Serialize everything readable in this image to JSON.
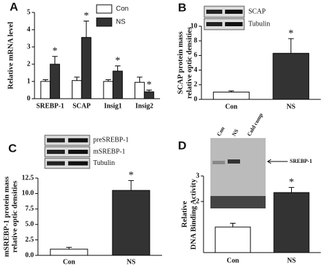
{
  "chart_data": [
    {
      "type": "bar",
      "letter": "A",
      "y_label": [
        "Relative mRNA level"
      ],
      "categories": [
        "SREBP-1",
        "SCAP",
        "Insig1",
        "Insig2"
      ],
      "series": [
        {
          "name": "Con",
          "color": "#ffffff",
          "values": [
            1.0,
            1.05,
            1.0,
            0.95
          ],
          "errors": [
            0.1,
            0.2,
            0.1,
            0.3
          ]
        },
        {
          "name": "NS",
          "color": "#333333",
          "values": [
            2.0,
            3.55,
            1.6,
            0.4
          ],
          "errors": [
            0.45,
            0.95,
            0.3,
            0.1
          ],
          "annotations": [
            "*",
            "*",
            "*",
            "*"
          ]
        }
      ],
      "ylim": [
        0,
        5
      ],
      "yticks": [
        0,
        1,
        2,
        3,
        4,
        5
      ],
      "legend": "top-right"
    },
    {
      "type": "bar",
      "letter": "B",
      "y_label": [
        "SCAP protein mass",
        "relative optic densities"
      ],
      "blot_labels": [
        "SCAP",
        "Tubulin"
      ],
      "categories": [
        "Con",
        "NS"
      ],
      "values": [
        1.0,
        6.3
      ],
      "errors": [
        0.15,
        2.0
      ],
      "colors": [
        "#ffffff",
        "#333333"
      ],
      "annotations": [
        null,
        "*"
      ],
      "ylim": [
        0,
        10
      ],
      "yticks": [
        0,
        2,
        4,
        6,
        8,
        10
      ]
    },
    {
      "type": "bar",
      "letter": "C",
      "y_label": [
        "mSREBP-1 protein mass",
        "relative optic densities"
      ],
      "blot_labels": [
        "preSREBP-1",
        "mSREBP-1",
        "Tubulin"
      ],
      "categories": [
        "Con",
        "NS"
      ],
      "values": [
        1.0,
        10.5
      ],
      "errors": [
        0.3,
        1.6
      ],
      "colors": [
        "#ffffff",
        "#333333"
      ],
      "annotations": [
        null,
        "*"
      ],
      "ylim": [
        0,
        12.5
      ],
      "yticks": [
        {
          "value": 0,
          "label": "0.0"
        },
        2.5,
        {
          "value": 5,
          "label": "5.0"
        },
        7.5,
        {
          "value": 10,
          "label": "10.0"
        },
        12.5
      ]
    },
    {
      "type": "bar",
      "letter": "D",
      "y_label": [
        "Relative",
        "DNA Binding Activity"
      ],
      "lane_labels": [
        "Con",
        "NS",
        "Cold comp"
      ],
      "band_label": "SREBP-1",
      "categories": [
        "Con",
        "NS"
      ],
      "values": [
        1.0,
        2.35
      ],
      "errors": [
        0.15,
        0.2
      ],
      "colors": [
        "#ffffff",
        "#333333"
      ],
      "annotations": [
        null,
        "*"
      ],
      "ylim": [
        0,
        3
      ],
      "yticks": [
        2,
        3
      ]
    }
  ]
}
